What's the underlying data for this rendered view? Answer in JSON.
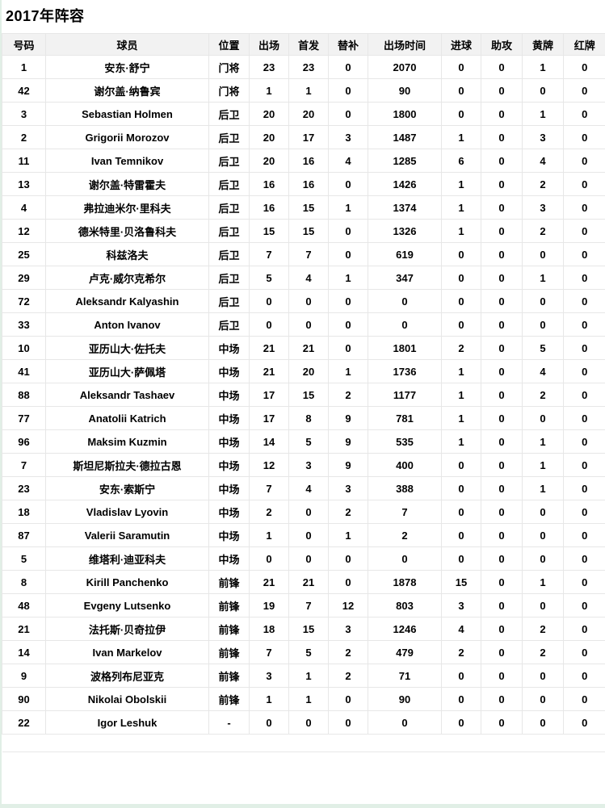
{
  "page": {
    "title": "2017年阵容",
    "accent_color": "#e1efe6",
    "header_bg_color": "#f2f2f2",
    "border_color": "#e7e7e7"
  },
  "table": {
    "columns": [
      "号码",
      "球员",
      "位置",
      "出场",
      "首发",
      "替补",
      "出场时间",
      "进球",
      "助攻",
      "黄牌",
      "红牌"
    ],
    "rows": [
      [
        "1",
        "安东·舒宁",
        "门将",
        "23",
        "23",
        "0",
        "2070",
        "0",
        "0",
        "1",
        "0"
      ],
      [
        "42",
        "谢尔盖·纳鲁宾",
        "门将",
        "1",
        "1",
        "0",
        "90",
        "0",
        "0",
        "0",
        "0"
      ],
      [
        "3",
        "Sebastian Holmen",
        "后卫",
        "20",
        "20",
        "0",
        "1800",
        "0",
        "0",
        "1",
        "0"
      ],
      [
        "2",
        "Grigorii Morozov",
        "后卫",
        "20",
        "17",
        "3",
        "1487",
        "1",
        "0",
        "3",
        "0"
      ],
      [
        "11",
        "Ivan Temnikov",
        "后卫",
        "20",
        "16",
        "4",
        "1285",
        "6",
        "0",
        "4",
        "0"
      ],
      [
        "13",
        "谢尔盖·特雷霍夫",
        "后卫",
        "16",
        "16",
        "0",
        "1426",
        "1",
        "0",
        "2",
        "0"
      ],
      [
        "4",
        "弗拉迪米尔·里科夫",
        "后卫",
        "16",
        "15",
        "1",
        "1374",
        "1",
        "0",
        "3",
        "0"
      ],
      [
        "12",
        "德米特里·贝洛鲁科夫",
        "后卫",
        "15",
        "15",
        "0",
        "1326",
        "1",
        "0",
        "2",
        "0"
      ],
      [
        "25",
        "科兹洛夫",
        "后卫",
        "7",
        "7",
        "0",
        "619",
        "0",
        "0",
        "0",
        "0"
      ],
      [
        "29",
        "卢克·威尔克希尔",
        "后卫",
        "5",
        "4",
        "1",
        "347",
        "0",
        "0",
        "1",
        "0"
      ],
      [
        "72",
        "Aleksandr Kalyashin",
        "后卫",
        "0",
        "0",
        "0",
        "0",
        "0",
        "0",
        "0",
        "0"
      ],
      [
        "33",
        "Anton Ivanov",
        "后卫",
        "0",
        "0",
        "0",
        "0",
        "0",
        "0",
        "0",
        "0"
      ],
      [
        "10",
        "亚历山大·佐托夫",
        "中场",
        "21",
        "21",
        "0",
        "1801",
        "2",
        "0",
        "5",
        "0"
      ],
      [
        "41",
        "亚历山大·萨佩塔",
        "中场",
        "21",
        "20",
        "1",
        "1736",
        "1",
        "0",
        "4",
        "0"
      ],
      [
        "88",
        "Aleksandr Tashaev",
        "中场",
        "17",
        "15",
        "2",
        "1177",
        "1",
        "0",
        "2",
        "0"
      ],
      [
        "77",
        "Anatolii Katrich",
        "中场",
        "17",
        "8",
        "9",
        "781",
        "1",
        "0",
        "0",
        "0"
      ],
      [
        "96",
        "Maksim Kuzmin",
        "中场",
        "14",
        "5",
        "9",
        "535",
        "1",
        "0",
        "1",
        "0"
      ],
      [
        "7",
        "斯坦尼斯拉夫·德拉古恩",
        "中场",
        "12",
        "3",
        "9",
        "400",
        "0",
        "0",
        "1",
        "0"
      ],
      [
        "23",
        "安东·索斯宁",
        "中场",
        "7",
        "4",
        "3",
        "388",
        "0",
        "0",
        "1",
        "0"
      ],
      [
        "18",
        "Vladislav Lyovin",
        "中场",
        "2",
        "0",
        "2",
        "7",
        "0",
        "0",
        "0",
        "0"
      ],
      [
        "87",
        "Valerii Saramutin",
        "中场",
        "1",
        "0",
        "1",
        "2",
        "0",
        "0",
        "0",
        "0"
      ],
      [
        "5",
        "维塔利·迪亚科夫",
        "中场",
        "0",
        "0",
        "0",
        "0",
        "0",
        "0",
        "0",
        "0"
      ],
      [
        "8",
        "Kirill Panchenko",
        "前锋",
        "21",
        "21",
        "0",
        "1878",
        "15",
        "0",
        "1",
        "0"
      ],
      [
        "48",
        "Evgeny Lutsenko",
        "前锋",
        "19",
        "7",
        "12",
        "803",
        "3",
        "0",
        "0",
        "0"
      ],
      [
        "21",
        "法托斯·贝奇拉伊",
        "前锋",
        "18",
        "15",
        "3",
        "1246",
        "4",
        "0",
        "2",
        "0"
      ],
      [
        "14",
        "Ivan Markelov",
        "前锋",
        "7",
        "5",
        "2",
        "479",
        "2",
        "0",
        "2",
        "0"
      ],
      [
        "9",
        "波格列布尼亚克",
        "前锋",
        "3",
        "1",
        "2",
        "71",
        "0",
        "0",
        "0",
        "0"
      ],
      [
        "90",
        "Nikolai Obolskii",
        "前锋",
        "1",
        "1",
        "0",
        "90",
        "0",
        "0",
        "0",
        "0"
      ],
      [
        "22",
        "Igor Leshuk",
        "-",
        "0",
        "0",
        "0",
        "0",
        "0",
        "0",
        "0",
        "0"
      ]
    ]
  }
}
